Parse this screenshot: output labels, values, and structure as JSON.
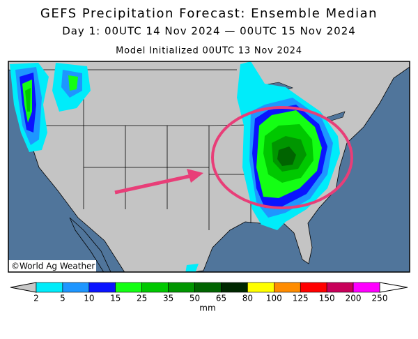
{
  "header": {
    "title": "GEFS Precipitation Forecast: Ensemble Median",
    "subtitle": "Day 1: 00UTC 14 Nov 2024 — 00UTC 15 Nov 2024",
    "initialized": "Model Initialized 00UTC 13 Nov 2024"
  },
  "map": {
    "credit": "©World Ag Weather"
  },
  "colorbar": {
    "levels": [
      "2",
      "5",
      "10",
      "15",
      "25",
      "35",
      "50",
      "65",
      "80",
      "100",
      "125",
      "150",
      "200",
      "250"
    ],
    "colors": [
      "#00ecfa",
      "#1e96ff",
      "#0a14ff",
      "#14ff14",
      "#00c800",
      "#009600",
      "#006400",
      "#002800",
      "#ffff00",
      "#ff8c00",
      "#ff0000",
      "#c8005a",
      "#ff00ff",
      "#9650dc"
    ],
    "unit": "mm"
  }
}
